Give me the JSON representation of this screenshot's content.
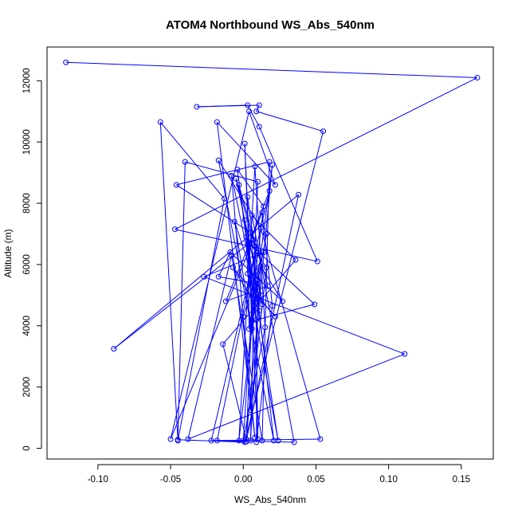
{
  "chart_data": {
    "type": "line",
    "title": "ATOM4 Northbound WS_Abs_540nm",
    "xlabel": "WS_Abs_540nm",
    "ylabel": "Altitude (m)",
    "xlim": [
      -0.135,
      0.172
    ],
    "ylim": [
      -350,
      13100
    ],
    "xticks": [
      -0.1,
      -0.05,
      0.0,
      0.05,
      0.1,
      0.15
    ],
    "xtick_labels": [
      "-0.10",
      "-0.05",
      "0.00",
      "0.05",
      "0.10",
      "0.15"
    ],
    "yticks": [
      0,
      2000,
      4000,
      6000,
      8000,
      10000,
      12000
    ],
    "ytick_labels": [
      "0",
      "2000",
      "4000",
      "6000",
      "8000",
      "10000",
      "12000"
    ],
    "grid": false,
    "legend": "none",
    "series": [
      {
        "color": "#0000ff",
        "marker": "open-circle",
        "points": [
          [
            -0.122,
            12600
          ],
          [
            0.161,
            12100
          ],
          [
            -0.047,
            7150
          ],
          [
            0.051,
            6100
          ],
          [
            0.011,
            10500
          ],
          [
            0.003,
            11200
          ],
          [
            -0.032,
            11150
          ],
          [
            0.011,
            11200
          ],
          [
            0.009,
            11000
          ],
          [
            0.055,
            10350
          ],
          [
            0.001,
            200
          ],
          [
            -0.045,
            280
          ],
          [
            -0.057,
            10650
          ],
          [
            -0.013,
            8150
          ],
          [
            -0.045,
            250
          ],
          [
            -0.04,
            9350
          ],
          [
            0.01,
            8700
          ],
          [
            0.002,
            220
          ],
          [
            0.038,
            8280
          ],
          [
            -0.089,
            3250
          ],
          [
            0.007,
            6800
          ],
          [
            -0.05,
            300
          ],
          [
            0.004,
            11000
          ],
          [
            0.022,
            8600
          ],
          [
            -0.018,
            10650
          ],
          [
            0.008,
            350
          ],
          [
            0.0,
            4300
          ],
          [
            0.014,
            6400
          ],
          [
            -0.027,
            5600
          ],
          [
            0.111,
            3080
          ],
          [
            -0.038,
            300
          ],
          [
            -0.008,
            6300
          ],
          [
            0.013,
            250
          ],
          [
            0.018,
            9350
          ],
          [
            -0.046,
            8600
          ],
          [
            0.005,
            7050
          ],
          [
            0.021,
            250
          ],
          [
            -0.017,
            9400
          ],
          [
            0.012,
            7200
          ],
          [
            0.053,
            300
          ],
          [
            -0.022,
            250
          ],
          [
            0.018,
            8400
          ],
          [
            0.004,
            6700
          ],
          [
            0.049,
            4700
          ],
          [
            0.006,
            4150
          ],
          [
            0.02,
            9250
          ],
          [
            0.002,
            300
          ],
          [
            -0.014,
            3400
          ],
          [
            0.036,
            6150
          ],
          [
            0.006,
            7600
          ],
          [
            0.035,
            200
          ],
          [
            -0.018,
            250
          ],
          [
            0.008,
            6300
          ],
          [
            0.005,
            250
          ],
          [
            0.012,
            5950
          ],
          [
            0.027,
            4800
          ],
          [
            -0.009,
            6400
          ],
          [
            -0.017,
            5600
          ],
          [
            0.007,
            5400
          ],
          [
            0.0,
            250
          ],
          [
            0.015,
            3950
          ],
          [
            0.008,
            9200
          ],
          [
            -0.003,
            250
          ],
          [
            0.01,
            5500
          ],
          [
            0.009,
            200
          ],
          [
            0.02,
            4650
          ],
          [
            0.013,
            7700
          ],
          [
            -0.012,
            4800
          ],
          [
            0.017,
            5300
          ],
          [
            0.01,
            6400
          ],
          [
            -0.003,
            8600
          ],
          [
            0.024,
            250
          ],
          [
            0.003,
            5700
          ],
          [
            0.002,
            6900
          ],
          [
            0.016,
            5900
          ],
          [
            0.005,
            1250
          ],
          [
            -0.008,
            8900
          ],
          [
            0.011,
            4500
          ],
          [
            -0.007,
            5900
          ],
          [
            0.022,
            4300
          ],
          [
            0.007,
            5100
          ],
          [
            0.014,
            7900
          ],
          [
            -0.004,
            9100
          ],
          [
            0.009,
            4200
          ],
          [
            0.001,
            7450
          ],
          [
            0.012,
            5000
          ],
          [
            -0.005,
            8800
          ],
          [
            0.008,
            6600
          ],
          [
            0.01,
            300
          ],
          [
            0.001,
            9950
          ],
          [
            0.006,
            3900
          ],
          [
            -0.006,
            7400
          ],
          [
            0.013,
            4700
          ],
          [
            0.003,
            8200
          ],
          [
            0.004,
            3900
          ],
          [
            0.016,
            7000
          ]
        ]
      }
    ]
  }
}
